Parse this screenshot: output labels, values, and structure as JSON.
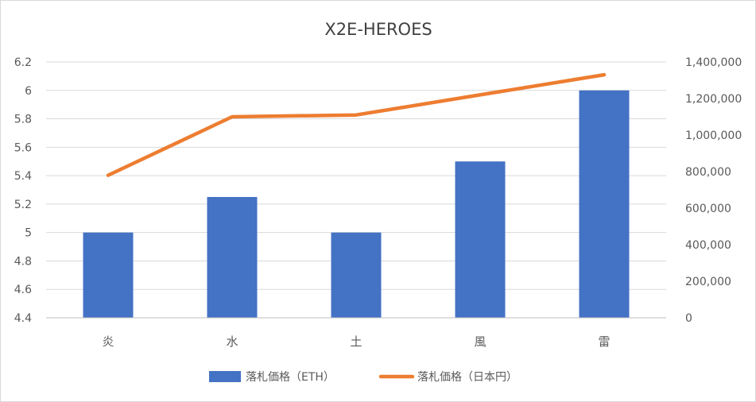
{
  "chart_data": {
    "type": "bar",
    "title": "X2E-HEROES",
    "categories": [
      "炎",
      "水",
      "土",
      "風",
      "雷"
    ],
    "series": [
      {
        "name": "落札価格（ETH）",
        "type": "bar",
        "axis": "left",
        "color": "#4472C4",
        "values": [
          5.0,
          5.25,
          5.0,
          5.5,
          6.0
        ]
      },
      {
        "name": "落札価格（日本円）",
        "type": "line",
        "axis": "right",
        "color": "#ED7D31",
        "values": [
          780000,
          1100000,
          1110000,
          1220000,
          1330000
        ]
      }
    ],
    "y_left": {
      "min": 4.4,
      "max": 6.2,
      "step": 0.2,
      "tick_labels": [
        "4.4",
        "4.6",
        "4.8",
        "5",
        "5.2",
        "5.4",
        "5.6",
        "5.8",
        "6",
        "6.2"
      ]
    },
    "y_right": {
      "min": 0,
      "max": 1400000,
      "step": 200000,
      "tick_labels": [
        "0",
        "200,000",
        "400,000",
        "600,000",
        "800,000",
        "1,000,000",
        "1,200,000",
        "1,400,000"
      ]
    },
    "grid": true,
    "legend": "bottom",
    "gridline_color": "#d9d9d9",
    "axis_line_color": "#bfbfbf"
  }
}
